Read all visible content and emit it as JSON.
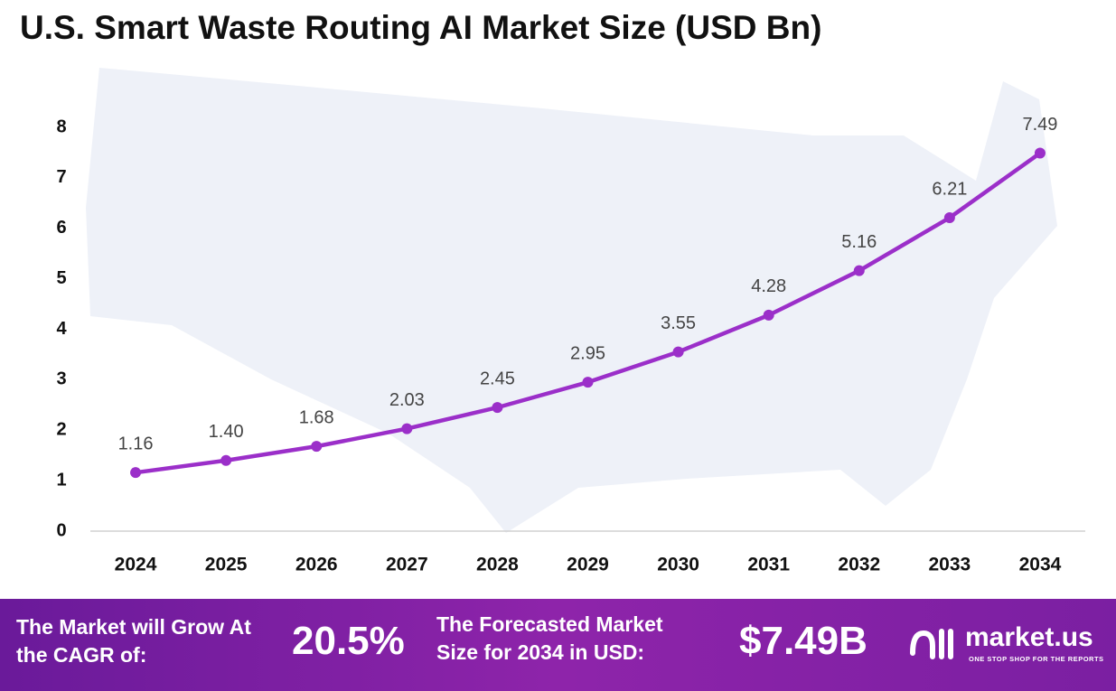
{
  "chart_data": {
    "type": "line",
    "title": "U.S. Smart Waste Routing AI Market Size (USD Bn)",
    "categories": [
      "2024",
      "2025",
      "2026",
      "2027",
      "2028",
      "2029",
      "2030",
      "2031",
      "2032",
      "2033",
      "2034"
    ],
    "values": [
      1.16,
      1.4,
      1.68,
      2.03,
      2.45,
      2.95,
      3.55,
      4.28,
      5.16,
      6.21,
      7.49
    ],
    "value_labels": [
      "1.16",
      "1.40",
      "1.68",
      "2.03",
      "2.45",
      "2.95",
      "3.55",
      "4.28",
      "5.16",
      "6.21",
      "7.49"
    ],
    "color": "#9b2fc9",
    "ylim": [
      0,
      8
    ],
    "yticks": [
      0,
      1,
      2,
      3,
      4,
      5,
      6,
      7,
      8
    ],
    "grid": false
  },
  "footer": {
    "cagr_label": "The Market will Grow At the CAGR of:",
    "cagr_value": "20.5%",
    "forecast_label": "The Forecasted Market Size for 2034 in USD:",
    "forecast_value": "$7.49B",
    "logo": "market.us",
    "tagline": "ONE STOP SHOP FOR THE REPORTS"
  }
}
